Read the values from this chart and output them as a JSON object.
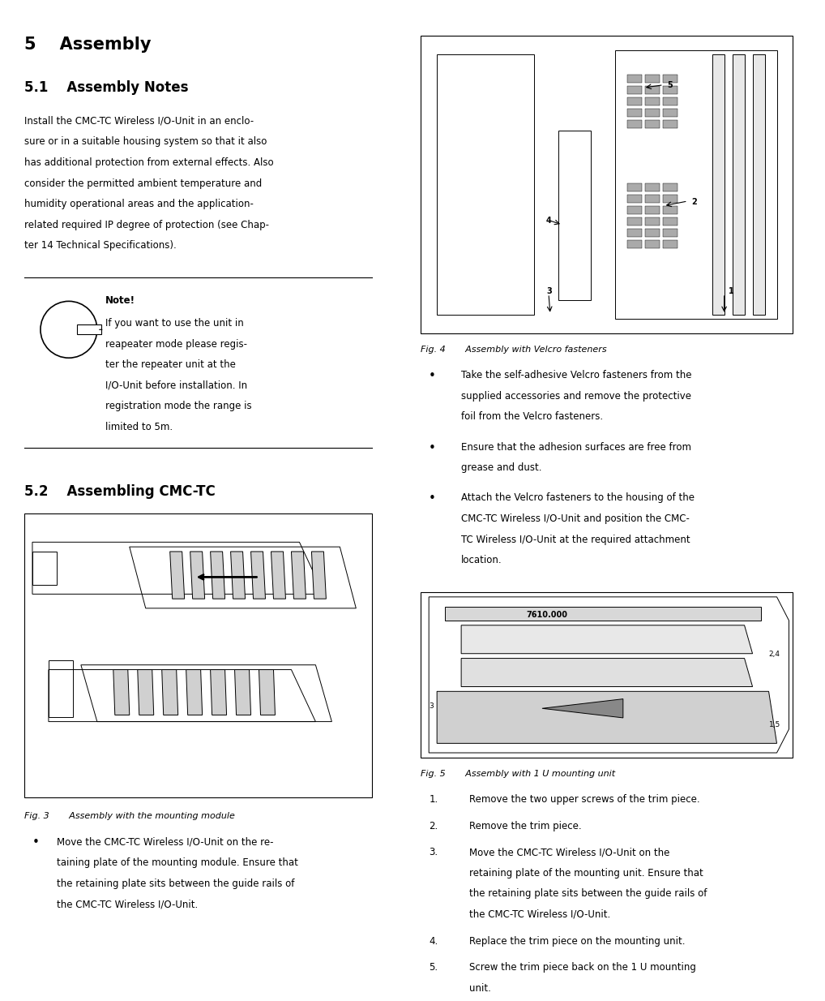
{
  "page_width": 10.04,
  "page_height": 12.13,
  "bg_color": "#ffffff",
  "text_color": "#000000",
  "chapter_title": "5    Assembly",
  "section_51_title": "5.1    Assembly Notes",
  "section_51_body": "Install the CMC-TC Wireless I/O-Unit in an enclo-\nsure or in a suitable housing system so that it also\nhas additional protection from external effects. Also\nconsider the permitted ambient temperature and\nhumidity operational areas and the application-\nrelated required IP degree of protection (see Chap-\nter 14 Technical Specifications).",
  "note_bold": "Note!",
  "note_body": "If you want to use the unit in\nreapeater mode please regis-\nter the repeater unit at the\nI/O-Unit before installation. In\nregistration mode the range is\nlimited to 5m.",
  "section_52_title": "5.2    Assembling CMC-TC",
  "fig3_caption": "Fig. 3       Assembly with the mounting module",
  "fig3_bullet": "Move the CMC-TC Wireless I/O-Unit on the re-\ntaining plate of the mounting module. Ensure that\nthe retaining plate sits between the guide rails of\nthe CMC-TC Wireless I/O-Unit.",
  "fig4_caption": "Fig. 4       Assembly with Velcro fasteners",
  "fig4_bullet1": "Take the self-adhesive Velcro fasteners from the\nsupplied accessories and remove the protective\nfoil from the Velcro fasteners.",
  "fig4_bullet2": "Ensure that the adhesion surfaces are free from\ngrease and dust.",
  "fig4_bullet3": "Attach the Velcro fasteners to the housing of the\nCMC-TC Wireless I/O-Unit and position the CMC-\nTC Wireless I/O-Unit at the required attachment\nlocation.",
  "fig5_caption": "Fig. 5       Assembly with 1 U mounting unit",
  "fig5_item1": "Remove the two upper screws of the trim piece.",
  "fig5_item2": "Remove the trim piece.",
  "fig5_item3": "Move the CMC-TC Wireless I/O-Unit on the\nretaining plate of the mounting unit. Ensure that\nthe retaining plate sits between the guide rails of\nthe CMC-TC Wireless I/O-Unit.",
  "fig5_item4": "Replace the trim piece on the mounting unit.",
  "fig5_item5": "Screw the trim piece back on the 1 U mounting\nunit."
}
